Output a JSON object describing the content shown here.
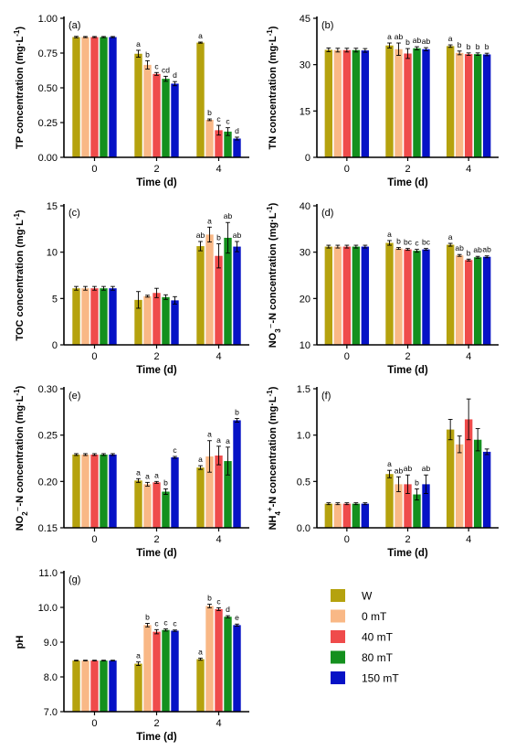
{
  "legend": {
    "entries": [
      {
        "name": "W",
        "color": "#b5a20e"
      },
      {
        "name": "0  mT",
        "color": "#f9b886"
      },
      {
        "name": "40 mT",
        "color": "#ef4b4b"
      },
      {
        "name": "80 mT",
        "color": "#14901e"
      },
      {
        "name": "150 mT",
        "color": "#0612c6"
      }
    ]
  },
  "chart_data": [
    {
      "type": "bar",
      "panel_label": "(a)",
      "categories": [
        "0",
        "2",
        "4"
      ],
      "xlabel": "Time (d)",
      "ylabel_parts": [
        {
          "text": "TP concentration (mg·L"
        },
        {
          "text": "-1",
          "sup": true
        },
        {
          "text": ")"
        }
      ],
      "ylim": [
        0,
        1.0
      ],
      "yticks": [
        "0.00",
        "0.25",
        "0.50",
        "0.75",
        "1.00"
      ],
      "series": [
        {
          "name": "W",
          "values": [
            0.865,
            0.745,
            0.825
          ],
          "errors": [
            0.005,
            0.025,
            0.004
          ],
          "letters": [
            "",
            "a",
            "a"
          ]
        },
        {
          "name": "0  mT",
          "values": [
            0.865,
            0.665,
            0.27
          ],
          "errors": [
            0.004,
            0.03,
            0.006
          ],
          "letters": [
            "",
            "b",
            "b"
          ]
        },
        {
          "name": "40 mT",
          "values": [
            0.865,
            0.6,
            0.195
          ],
          "errors": [
            0.004,
            0.01,
            0.035
          ],
          "letters": [
            "",
            "c",
            "c"
          ]
        },
        {
          "name": "80 mT",
          "values": [
            0.865,
            0.565,
            0.185
          ],
          "errors": [
            0.004,
            0.018,
            0.028
          ],
          "letters": [
            "",
            "cd",
            "c"
          ]
        },
        {
          "name": "150 mT",
          "values": [
            0.865,
            0.53,
            0.135
          ],
          "errors": [
            0.004,
            0.015,
            0.01
          ],
          "letters": [
            "",
            "d",
            "d"
          ]
        }
      ]
    },
    {
      "type": "bar",
      "panel_label": "(b)",
      "categories": [
        "0",
        "2",
        "4"
      ],
      "xlabel": "Time (d)",
      "ylabel_parts": [
        {
          "text": "TN concentration (mg·L"
        },
        {
          "text": "-1",
          "sup": true
        },
        {
          "text": ")"
        }
      ],
      "ylim": [
        0,
        45
      ],
      "yticks": [
        "0",
        "15",
        "30",
        "45"
      ],
      "series": [
        {
          "name": "W",
          "values": [
            34.8,
            36.2,
            36.0
          ],
          "errors": [
            0.6,
            0.8,
            0.4
          ],
          "letters": [
            "",
            "a",
            "a"
          ]
        },
        {
          "name": "0  mT",
          "values": [
            34.7,
            35.0,
            33.8
          ],
          "errors": [
            0.6,
            2.0,
            0.6
          ],
          "letters": [
            "",
            "ab",
            "b"
          ]
        },
        {
          "name": "40 mT",
          "values": [
            34.7,
            33.6,
            33.4
          ],
          "errors": [
            0.6,
            1.6,
            0.4
          ],
          "letters": [
            "",
            "b",
            "b"
          ]
        },
        {
          "name": "80 mT",
          "values": [
            34.7,
            35.3,
            33.4
          ],
          "errors": [
            0.6,
            0.5,
            0.4
          ],
          "letters": [
            "",
            "ab",
            "b"
          ]
        },
        {
          "name": "150 mT",
          "values": [
            34.6,
            35.0,
            33.3
          ],
          "errors": [
            0.6,
            0.5,
            0.4
          ],
          "letters": [
            "",
            "ab",
            "b"
          ]
        }
      ]
    },
    {
      "type": "bar",
      "panel_label": "(c)",
      "categories": [
        "0",
        "2",
        "4"
      ],
      "xlabel": "Time (d)",
      "ylabel_parts": [
        {
          "text": "TOC concentration (mg·L"
        },
        {
          "text": "-1",
          "sup": true
        },
        {
          "text": ")"
        }
      ],
      "ylim": [
        0,
        15
      ],
      "yticks": [
        "0",
        "5",
        "10",
        "15"
      ],
      "series": [
        {
          "name": "W",
          "values": [
            6.1,
            4.85,
            10.65
          ],
          "errors": [
            0.2,
            0.9,
            0.5
          ],
          "letters": [
            "",
            "",
            "ab"
          ]
        },
        {
          "name": "0  mT",
          "values": [
            6.1,
            5.25,
            11.9
          ],
          "errors": [
            0.2,
            0.1,
            0.8
          ],
          "letters": [
            "",
            "",
            "a"
          ]
        },
        {
          "name": "40 mT",
          "values": [
            6.1,
            5.6,
            9.6
          ],
          "errors": [
            0.2,
            0.5,
            1.3
          ],
          "letters": [
            "",
            "",
            "b"
          ]
        },
        {
          "name": "80 mT",
          "values": [
            6.1,
            5.15,
            11.55
          ],
          "errors": [
            0.2,
            0.25,
            1.65
          ],
          "letters": [
            "",
            "",
            "ab"
          ]
        },
        {
          "name": "150 mT",
          "values": [
            6.1,
            4.8,
            10.6
          ],
          "errors": [
            0.2,
            0.4,
            0.55
          ],
          "letters": [
            "",
            "",
            "ab"
          ]
        }
      ]
    },
    {
      "type": "bar",
      "panel_label": "(d)",
      "categories": [
        "0",
        "2",
        "4"
      ],
      "xlabel": "Time (d)",
      "ylabel_parts": [
        {
          "text": "NO"
        },
        {
          "text": "3",
          "sub": true
        },
        {
          "text": "⁻"
        },
        {
          "text": "-N concentration (mg·L"
        },
        {
          "text": "-1",
          "sup": true
        },
        {
          "text": ")"
        }
      ],
      "ylim": [
        10,
        40
      ],
      "yticks": [
        "10",
        "20",
        "30",
        "40"
      ],
      "series": [
        {
          "name": "W",
          "values": [
            31.2,
            32.0,
            31.6
          ],
          "errors": [
            0.3,
            0.5,
            0.3
          ],
          "letters": [
            "",
            "a",
            "a"
          ]
        },
        {
          "name": "0  mT",
          "values": [
            31.2,
            30.8,
            29.3
          ],
          "errors": [
            0.3,
            0.2,
            0.2
          ],
          "letters": [
            "",
            "b",
            "ab"
          ]
        },
        {
          "name": "40 mT",
          "values": [
            31.2,
            30.6,
            28.3
          ],
          "errors": [
            0.3,
            0.2,
            0.2
          ],
          "letters": [
            "",
            "bc",
            "b"
          ]
        },
        {
          "name": "80 mT",
          "values": [
            31.2,
            30.3,
            28.9
          ],
          "errors": [
            0.3,
            0.3,
            0.2
          ],
          "letters": [
            "",
            "c",
            "ab"
          ]
        },
        {
          "name": "150 mT",
          "values": [
            31.2,
            30.6,
            29.0
          ],
          "errors": [
            0.3,
            0.2,
            0.2
          ],
          "letters": [
            "",
            "bc",
            "ab"
          ]
        }
      ]
    },
    {
      "type": "bar",
      "panel_label": "(e)",
      "categories": [
        "0",
        "2",
        "4"
      ],
      "xlabel": "Time (d)",
      "ylabel_parts": [
        {
          "text": "NO"
        },
        {
          "text": "2",
          "sub": true
        },
        {
          "text": "⁻"
        },
        {
          "text": "-N concentration (mg·L"
        },
        {
          "text": "-1",
          "sup": true
        },
        {
          "text": ")"
        }
      ],
      "ylim": [
        0.15,
        0.3
      ],
      "yticks": [
        "0.15",
        "0.20",
        "0.25",
        "0.30"
      ],
      "series": [
        {
          "name": "W",
          "values": [
            0.229,
            0.201,
            0.215
          ],
          "errors": [
            0.001,
            0.002,
            0.002
          ],
          "letters": [
            "",
            "a",
            "a"
          ]
        },
        {
          "name": "0  mT",
          "values": [
            0.229,
            0.197,
            0.227
          ],
          "errors": [
            0.001,
            0.002,
            0.017
          ],
          "letters": [
            "",
            "a",
            "a"
          ]
        },
        {
          "name": "40 mT",
          "values": [
            0.229,
            0.199,
            0.228
          ],
          "errors": [
            0.001,
            0.001,
            0.01
          ],
          "letters": [
            "",
            "a",
            "a"
          ]
        },
        {
          "name": "80 mT",
          "values": [
            0.229,
            0.189,
            0.222
          ],
          "errors": [
            0.001,
            0.003,
            0.015
          ],
          "letters": [
            "",
            "b",
            "a"
          ]
        },
        {
          "name": "150 mT",
          "values": [
            0.229,
            0.226,
            0.266
          ],
          "errors": [
            0.001,
            0.001,
            0.002
          ],
          "letters": [
            "",
            "c",
            "b"
          ]
        }
      ]
    },
    {
      "type": "bar",
      "panel_label": "(f)",
      "categories": [
        "0",
        "2",
        "4"
      ],
      "xlabel": "Time (d)",
      "ylabel_parts": [
        {
          "text": "NH"
        },
        {
          "text": "4",
          "sub": true
        },
        {
          "text": "+",
          "sup": true
        },
        {
          "text": "-N concentration (mg·L"
        },
        {
          "text": "-1",
          "sup": true
        },
        {
          "text": ")"
        }
      ],
      "ylim": [
        0,
        1.5
      ],
      "yticks": [
        "0.0",
        "0.5",
        "1.0",
        "1.5"
      ],
      "series": [
        {
          "name": "W",
          "values": [
            0.26,
            0.58,
            1.06
          ],
          "errors": [
            0.01,
            0.04,
            0.11
          ],
          "letters": [
            "",
            "a",
            ""
          ]
        },
        {
          "name": "0  mT",
          "values": [
            0.26,
            0.47,
            0.9
          ],
          "errors": [
            0.01,
            0.08,
            0.09
          ],
          "letters": [
            "",
            "ab",
            ""
          ]
        },
        {
          "name": "40 mT",
          "values": [
            0.26,
            0.47,
            1.17
          ],
          "errors": [
            0.01,
            0.1,
            0.22
          ],
          "letters": [
            "",
            "ab",
            ""
          ]
        },
        {
          "name": "80 mT",
          "values": [
            0.26,
            0.36,
            0.95
          ],
          "errors": [
            0.01,
            0.06,
            0.12
          ],
          "letters": [
            "",
            "b",
            ""
          ]
        },
        {
          "name": "150 mT",
          "values": [
            0.26,
            0.47,
            0.82
          ],
          "errors": [
            0.01,
            0.1,
            0.03
          ],
          "letters": [
            "",
            "ab",
            ""
          ]
        }
      ]
    },
    {
      "type": "bar",
      "panel_label": "(g)",
      "categories": [
        "0",
        "2",
        "4"
      ],
      "xlabel": "Time (d)",
      "ylabel_parts": [
        {
          "text": "pH"
        }
      ],
      "ylim": [
        7.0,
        11.0
      ],
      "yticks": [
        "7.0",
        "8.0",
        "9.0",
        "10.0",
        "11.0"
      ],
      "series": [
        {
          "name": "W",
          "values": [
            8.47,
            8.38,
            8.51
          ],
          "errors": [
            0.01,
            0.05,
            0.03
          ],
          "letters": [
            "",
            "a",
            "a"
          ]
        },
        {
          "name": "0  mT",
          "values": [
            8.47,
            9.49,
            10.04
          ],
          "errors": [
            0.01,
            0.05,
            0.05
          ],
          "letters": [
            "",
            "b",
            "b"
          ]
        },
        {
          "name": "40 mT",
          "values": [
            8.47,
            9.3,
            9.95
          ],
          "errors": [
            0.01,
            0.06,
            0.04
          ],
          "letters": [
            "",
            "c",
            "c"
          ]
        },
        {
          "name": "80 mT",
          "values": [
            8.47,
            9.35,
            9.73
          ],
          "errors": [
            0.01,
            0.03,
            0.03
          ],
          "letters": [
            "",
            "c",
            "d"
          ]
        },
        {
          "name": "150 mT",
          "values": [
            8.47,
            9.33,
            9.49
          ],
          "errors": [
            0.01,
            0.02,
            0.03
          ],
          "letters": [
            "",
            "c",
            "e"
          ]
        }
      ]
    }
  ]
}
